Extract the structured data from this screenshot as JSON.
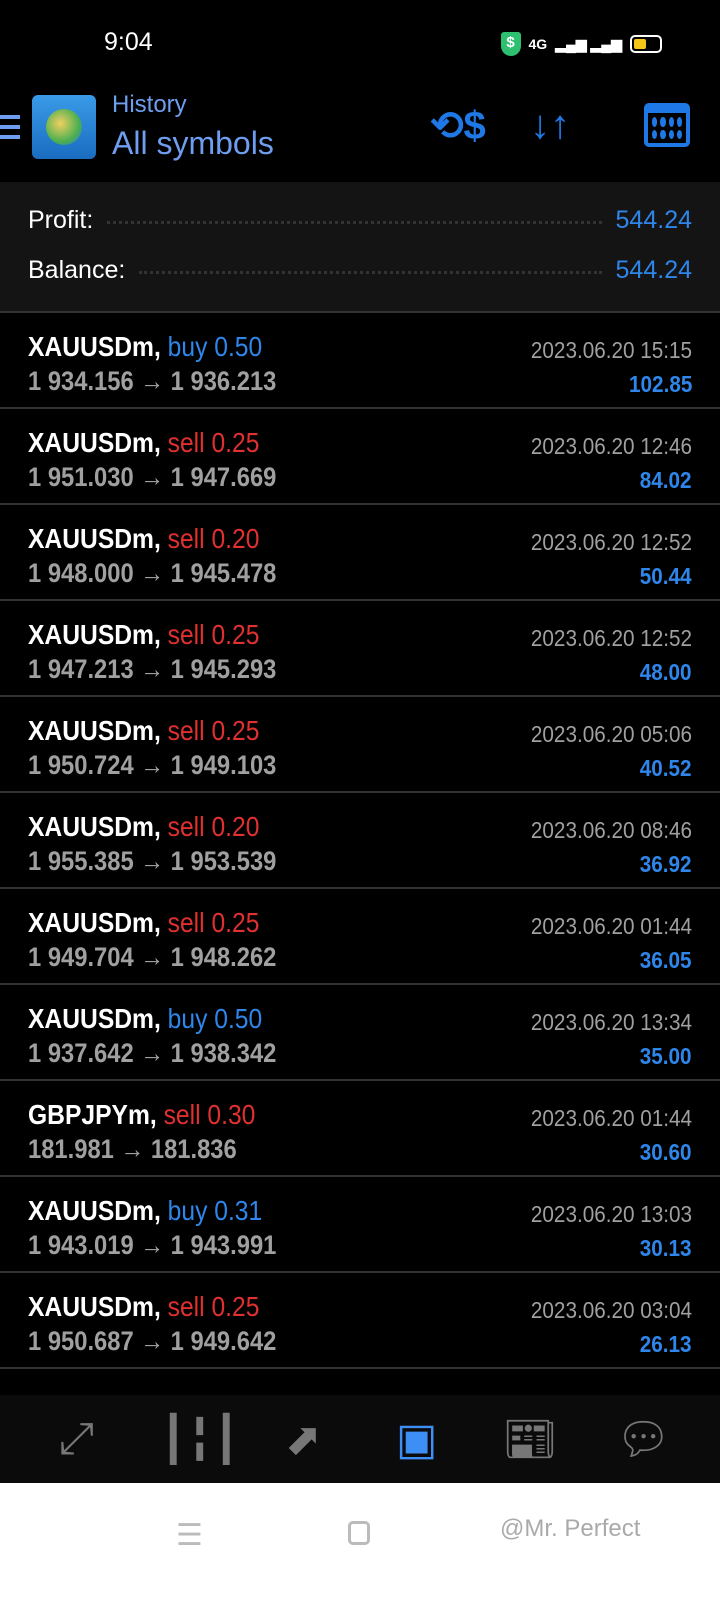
{
  "status_bar": {
    "time": "9:04",
    "network": "4G",
    "battery_level": 0.5
  },
  "header": {
    "title": "History",
    "subtitle": "All symbols",
    "icons": [
      "menu-icon",
      "app-logo",
      "currency-exchange-icon",
      "sort-icon",
      "calendar-icon"
    ]
  },
  "summary": {
    "profit_label": "Profit:",
    "profit_value": "544.24",
    "balance_label": "Balance:",
    "balance_value": "544.24"
  },
  "colors": {
    "buy": "#2f86ea",
    "sell": "#e03030",
    "accent": "#1e78e6"
  },
  "deals": [
    {
      "symbol": "XAUUSDm,",
      "side": "buy",
      "volume": "0.50",
      "prices": "1 934.156 → 1 936.213",
      "time": "2023.06.20 15:15",
      "profit": "102.85"
    },
    {
      "symbol": "XAUUSDm,",
      "side": "sell",
      "volume": "0.25",
      "prices": "1 951.030 → 1 947.669",
      "time": "2023.06.20 12:46",
      "profit": "84.02"
    },
    {
      "symbol": "XAUUSDm,",
      "side": "sell",
      "volume": "0.20",
      "prices": "1 948.000 → 1 945.478",
      "time": "2023.06.20 12:52",
      "profit": "50.44"
    },
    {
      "symbol": "XAUUSDm,",
      "side": "sell",
      "volume": "0.25",
      "prices": "1 947.213 → 1 945.293",
      "time": "2023.06.20 12:52",
      "profit": "48.00"
    },
    {
      "symbol": "XAUUSDm,",
      "side": "sell",
      "volume": "0.25",
      "prices": "1 950.724 → 1 949.103",
      "time": "2023.06.20 05:06",
      "profit": "40.52"
    },
    {
      "symbol": "XAUUSDm,",
      "side": "sell",
      "volume": "0.20",
      "prices": "1 955.385 → 1 953.539",
      "time": "2023.06.20 08:46",
      "profit": "36.92"
    },
    {
      "symbol": "XAUUSDm,",
      "side": "sell",
      "volume": "0.25",
      "prices": "1 949.704 → 1 948.262",
      "time": "2023.06.20 01:44",
      "profit": "36.05"
    },
    {
      "symbol": "XAUUSDm,",
      "side": "buy",
      "volume": "0.50",
      "prices": "1 937.642 → 1 938.342",
      "time": "2023.06.20 13:34",
      "profit": "35.00"
    },
    {
      "symbol": "GBPJPYm,",
      "side": "sell",
      "volume": "0.30",
      "prices": "181.981 → 181.836",
      "time": "2023.06.20 01:44",
      "profit": "30.60"
    },
    {
      "symbol": "XAUUSDm,",
      "side": "buy",
      "volume": "0.31",
      "prices": "1 943.019 → 1 943.991",
      "time": "2023.06.20 13:03",
      "profit": "30.13"
    },
    {
      "symbol": "XAUUSDm,",
      "side": "sell",
      "volume": "0.25",
      "prices": "1 950.687 → 1 949.642",
      "time": "2023.06.20 03:04",
      "profit": "26.13"
    }
  ],
  "bottom_nav": {
    "items": [
      "quotes",
      "chart",
      "trade",
      "history",
      "news",
      "chat"
    ],
    "active": "history"
  },
  "watermark": "@Mr. Perfect"
}
